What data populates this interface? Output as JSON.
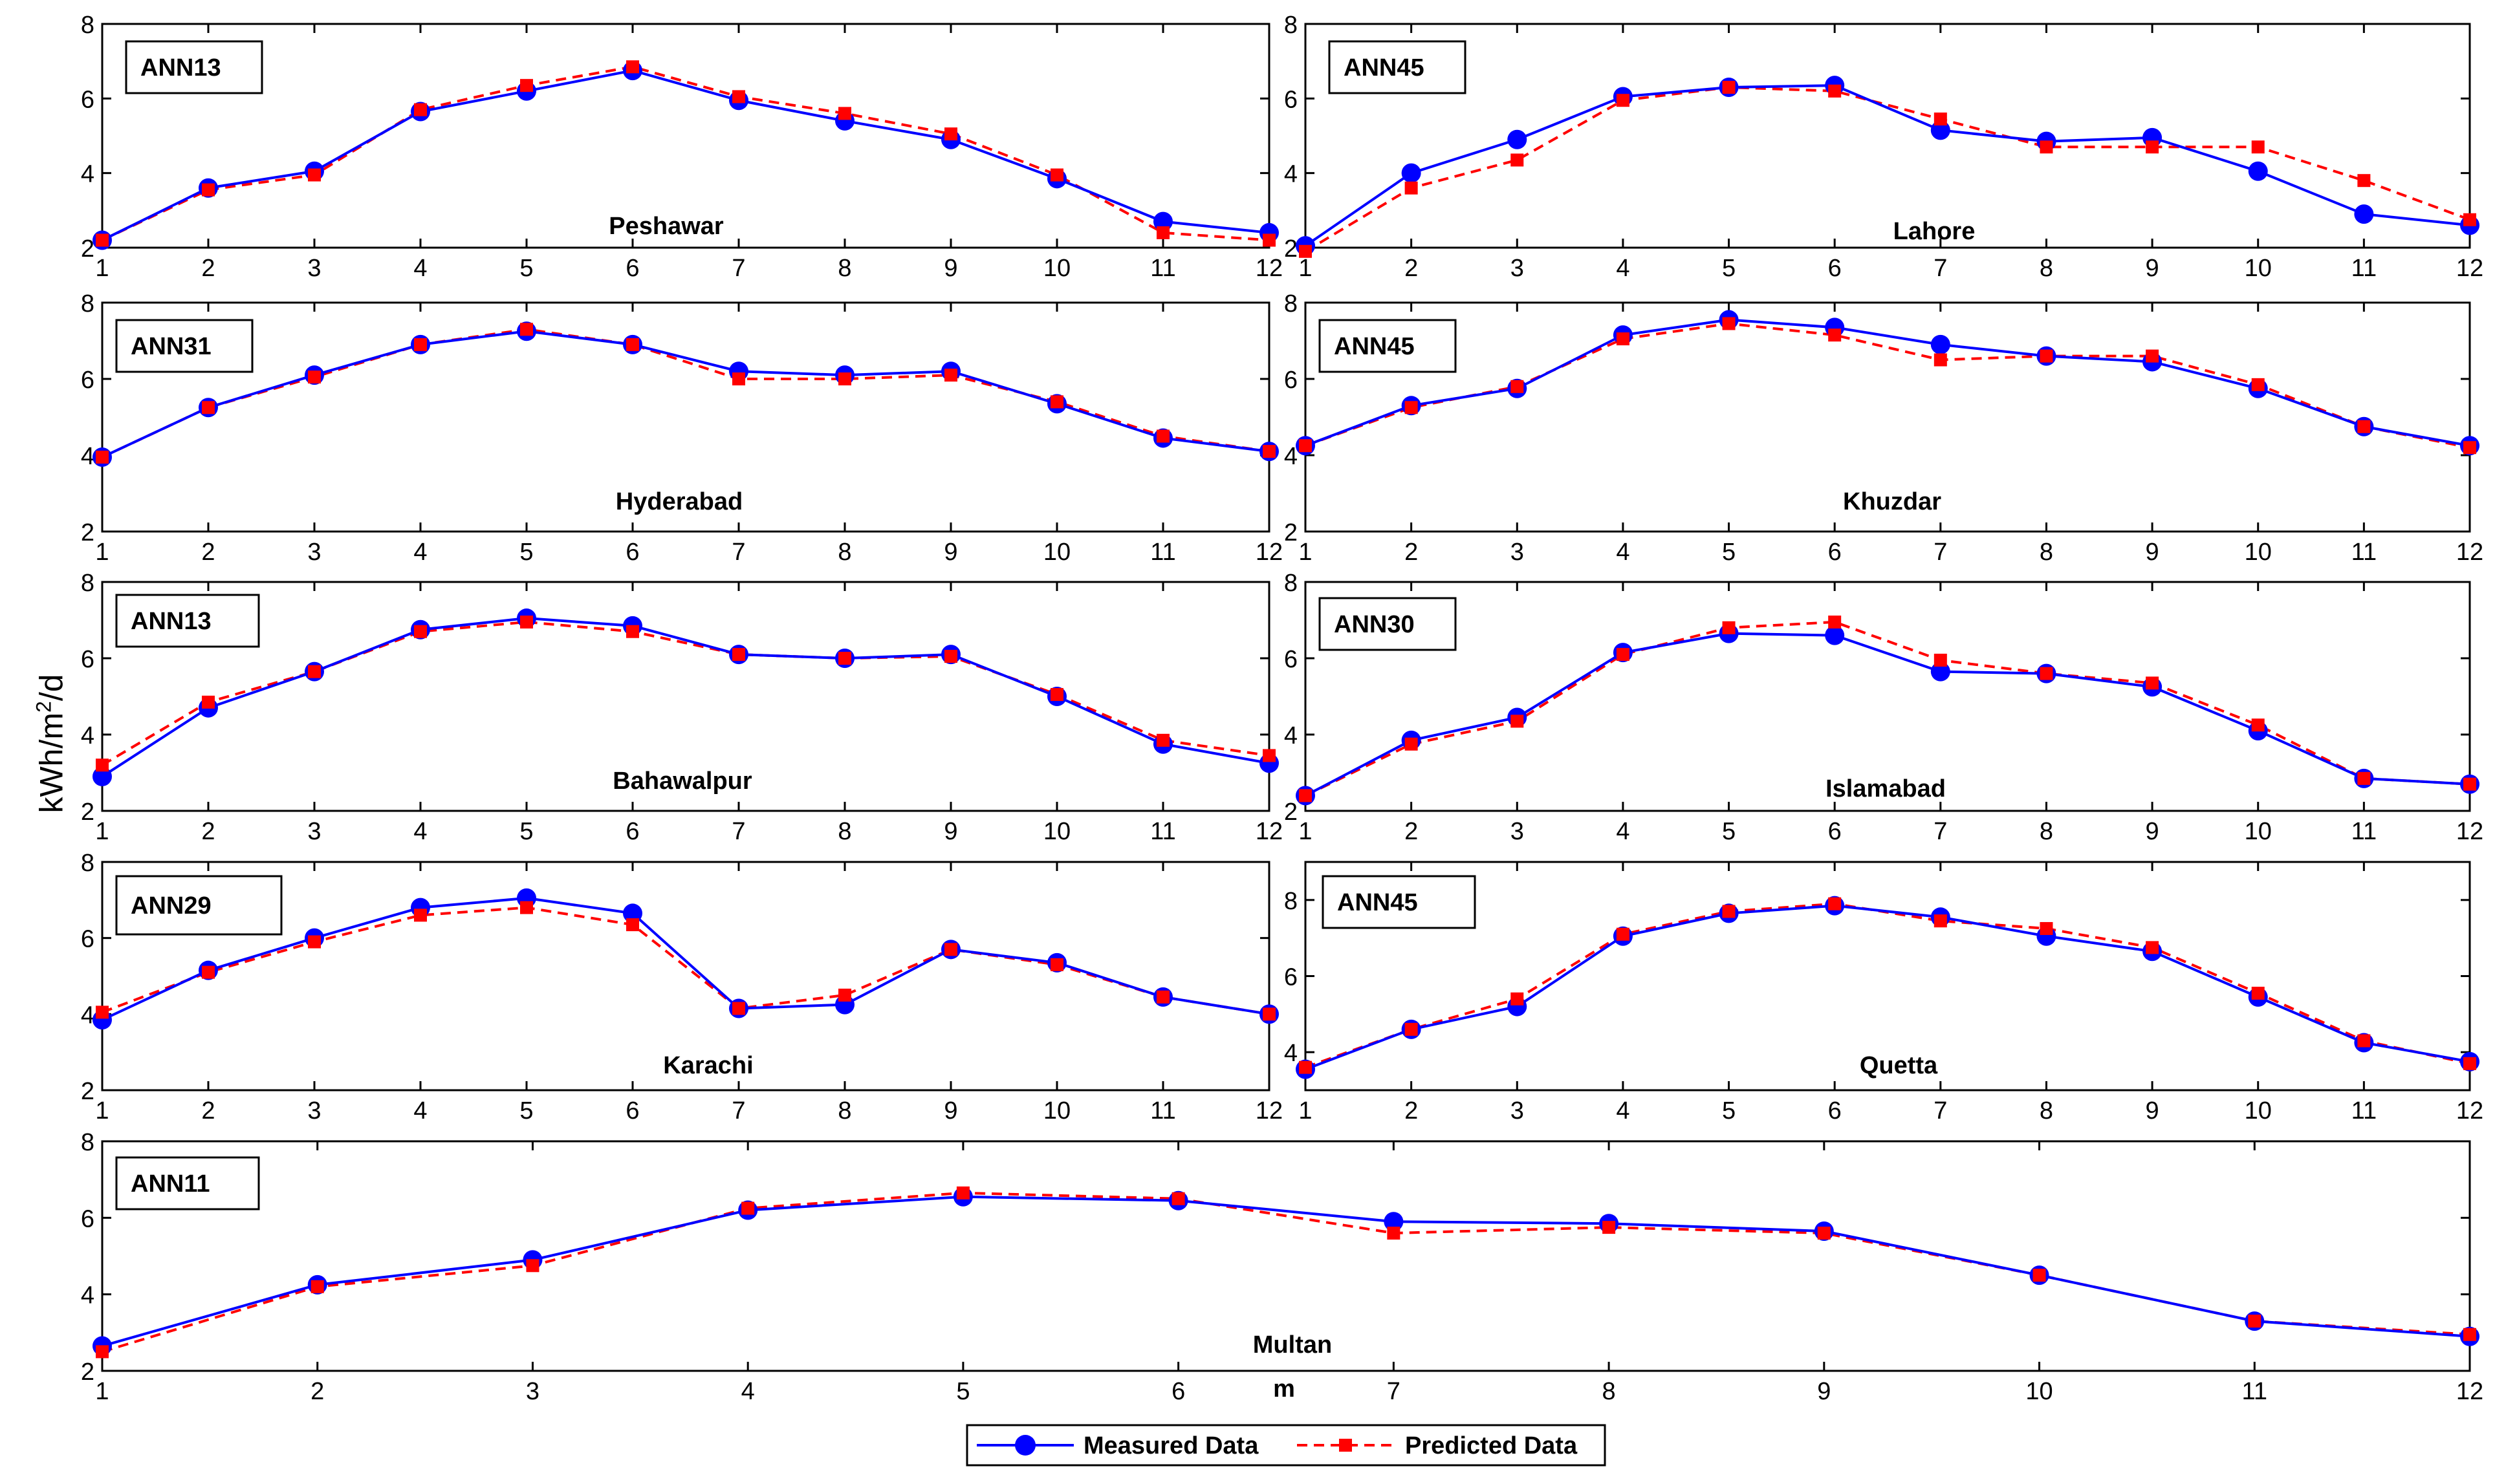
{
  "figure": {
    "ylabel_base": "kWh/m",
    "ylabel_sup": "2",
    "ylabel_tail": "/d",
    "xlabel": "m",
    "legend": [
      {
        "label": "Measured Data",
        "color": "#0000ff",
        "style": "solid",
        "marker": "circle"
      },
      {
        "label": "Predicted Data",
        "color": "#ff0000",
        "style": "dashed",
        "marker": "square"
      }
    ]
  },
  "colors": {
    "measured": "#0000ff",
    "predicted": "#ff0000",
    "axis": "#000000"
  },
  "chart_data": [
    {
      "type": "line",
      "model_label": "ANN13",
      "city": "Peshawar",
      "x": [
        1,
        2,
        3,
        4,
        5,
        6,
        7,
        8,
        9,
        10,
        11,
        12
      ],
      "ylim": [
        2,
        8
      ],
      "yticks": [
        2,
        4,
        6,
        8
      ],
      "series": [
        {
          "name": "Measured Data",
          "values": [
            2.2,
            3.6,
            4.05,
            5.65,
            6.2,
            6.75,
            5.95,
            5.4,
            4.9,
            3.85,
            2.7,
            2.4
          ]
        },
        {
          "name": "Predicted Data",
          "values": [
            2.2,
            3.55,
            3.95,
            5.7,
            6.35,
            6.85,
            6.05,
            5.6,
            5.05,
            3.95,
            2.4,
            2.2
          ]
        }
      ]
    },
    {
      "type": "line",
      "model_label": "ANN45",
      "city": "Lahore",
      "x": [
        1,
        2,
        3,
        4,
        5,
        6,
        7,
        8,
        9,
        10,
        11,
        12
      ],
      "ylim": [
        2,
        8
      ],
      "yticks": [
        2,
        4,
        6,
        8
      ],
      "series": [
        {
          "name": "Measured Data",
          "values": [
            2.05,
            4.0,
            4.9,
            6.05,
            6.3,
            6.35,
            5.15,
            4.85,
            4.95,
            4.05,
            2.9,
            2.6
          ]
        },
        {
          "name": "Predicted Data",
          "values": [
            1.9,
            3.6,
            4.35,
            5.95,
            6.3,
            6.2,
            5.45,
            4.7,
            4.7,
            4.7,
            3.8,
            2.75
          ]
        }
      ]
    },
    {
      "type": "line",
      "model_label": "ANN31",
      "city": "Hyderabad",
      "x": [
        1,
        2,
        3,
        4,
        5,
        6,
        7,
        8,
        9,
        10,
        11,
        12
      ],
      "ylim": [
        2,
        8
      ],
      "yticks": [
        2,
        4,
        6,
        8
      ],
      "series": [
        {
          "name": "Measured Data",
          "values": [
            3.95,
            5.25,
            6.1,
            6.9,
            7.25,
            6.9,
            6.2,
            6.1,
            6.2,
            5.35,
            4.45,
            4.1
          ]
        },
        {
          "name": "Predicted Data",
          "values": [
            3.95,
            5.25,
            6.05,
            6.9,
            7.3,
            6.9,
            6.0,
            6.0,
            6.1,
            5.4,
            4.5,
            4.1
          ]
        }
      ]
    },
    {
      "type": "line",
      "model_label": "ANN45",
      "city": "Khuzdar",
      "x": [
        1,
        2,
        3,
        4,
        5,
        6,
        7,
        8,
        9,
        10,
        11,
        12
      ],
      "ylim": [
        2,
        8
      ],
      "yticks": [
        2,
        4,
        6,
        8
      ],
      "series": [
        {
          "name": "Measured Data",
          "values": [
            4.25,
            5.3,
            5.75,
            7.15,
            7.55,
            7.35,
            6.9,
            6.6,
            6.45,
            5.75,
            4.75,
            4.25
          ]
        },
        {
          "name": "Predicted Data",
          "values": [
            4.25,
            5.25,
            5.8,
            7.05,
            7.45,
            7.15,
            6.5,
            6.6,
            6.6,
            5.85,
            4.75,
            4.2
          ]
        }
      ]
    },
    {
      "type": "line",
      "model_label": "ANN13",
      "city": "Bahawalpur",
      "x": [
        1,
        2,
        3,
        4,
        5,
        6,
        7,
        8,
        9,
        10,
        11,
        12
      ],
      "ylim": [
        2,
        8
      ],
      "yticks": [
        2,
        4,
        6,
        8
      ],
      "series": [
        {
          "name": "Measured Data",
          "values": [
            2.9,
            4.7,
            5.65,
            6.75,
            7.05,
            6.85,
            6.1,
            6.0,
            6.1,
            5.0,
            3.75,
            3.25
          ]
        },
        {
          "name": "Predicted Data",
          "values": [
            3.2,
            4.85,
            5.65,
            6.7,
            6.95,
            6.7,
            6.1,
            6.0,
            6.05,
            5.05,
            3.85,
            3.45
          ]
        }
      ]
    },
    {
      "type": "line",
      "model_label": "ANN30",
      "city": "Islamabad",
      "x": [
        1,
        2,
        3,
        4,
        5,
        6,
        7,
        8,
        9,
        10,
        11,
        12
      ],
      "ylim": [
        2,
        8
      ],
      "yticks": [
        2,
        4,
        6,
        8
      ],
      "series": [
        {
          "name": "Measured Data",
          "values": [
            2.4,
            3.85,
            4.45,
            6.15,
            6.65,
            6.6,
            5.65,
            5.6,
            5.25,
            4.1,
            2.85,
            2.7
          ]
        },
        {
          "name": "Predicted Data",
          "values": [
            2.4,
            3.75,
            4.35,
            6.1,
            6.8,
            6.95,
            5.95,
            5.6,
            5.35,
            4.25,
            2.85,
            2.7
          ]
        }
      ]
    },
    {
      "type": "line",
      "model_label": "ANN29",
      "city": "Karachi",
      "x": [
        1,
        2,
        3,
        4,
        5,
        6,
        7,
        8,
        9,
        10,
        11,
        12
      ],
      "ylim": [
        2,
        8
      ],
      "yticks": [
        2,
        4,
        6,
        8
      ],
      "series": [
        {
          "name": "Measured Data",
          "values": [
            3.85,
            5.15,
            6.0,
            6.8,
            7.05,
            6.65,
            4.15,
            4.25,
            5.7,
            5.35,
            4.45,
            4.0
          ]
        },
        {
          "name": "Predicted Data",
          "values": [
            4.05,
            5.1,
            5.9,
            6.6,
            6.8,
            6.35,
            4.15,
            4.5,
            5.7,
            5.3,
            4.45,
            4.0
          ]
        }
      ]
    },
    {
      "type": "line",
      "model_label": "ANN45",
      "city": "Quetta",
      "x": [
        1,
        2,
        3,
        4,
        5,
        6,
        7,
        8,
        9,
        10,
        11,
        12
      ],
      "ylim": [
        3,
        9
      ],
      "yticks": [
        4,
        6,
        8
      ],
      "series": [
        {
          "name": "Measured Data",
          "values": [
            3.55,
            4.6,
            5.2,
            7.05,
            7.65,
            7.85,
            7.55,
            7.05,
            6.65,
            5.45,
            4.25,
            3.75
          ]
        },
        {
          "name": "Predicted Data",
          "values": [
            3.6,
            4.6,
            5.4,
            7.1,
            7.7,
            7.9,
            7.45,
            7.25,
            6.75,
            5.55,
            4.3,
            3.7
          ]
        }
      ]
    },
    {
      "type": "line",
      "model_label": "ANN11",
      "city": "Multan",
      "x": [
        1,
        2,
        3,
        4,
        5,
        6,
        7,
        8,
        9,
        10,
        11,
        12
      ],
      "ylim": [
        2,
        8
      ],
      "yticks": [
        2,
        4,
        6,
        8
      ],
      "series": [
        {
          "name": "Measured Data",
          "values": [
            2.65,
            4.25,
            4.9,
            6.2,
            6.55,
            6.45,
            5.9,
            5.85,
            5.65,
            4.5,
            3.3,
            2.9
          ]
        },
        {
          "name": "Predicted Data",
          "values": [
            2.5,
            4.2,
            4.75,
            6.25,
            6.65,
            6.5,
            5.6,
            5.75,
            5.6,
            4.5,
            3.3,
            2.95
          ]
        }
      ]
    }
  ]
}
